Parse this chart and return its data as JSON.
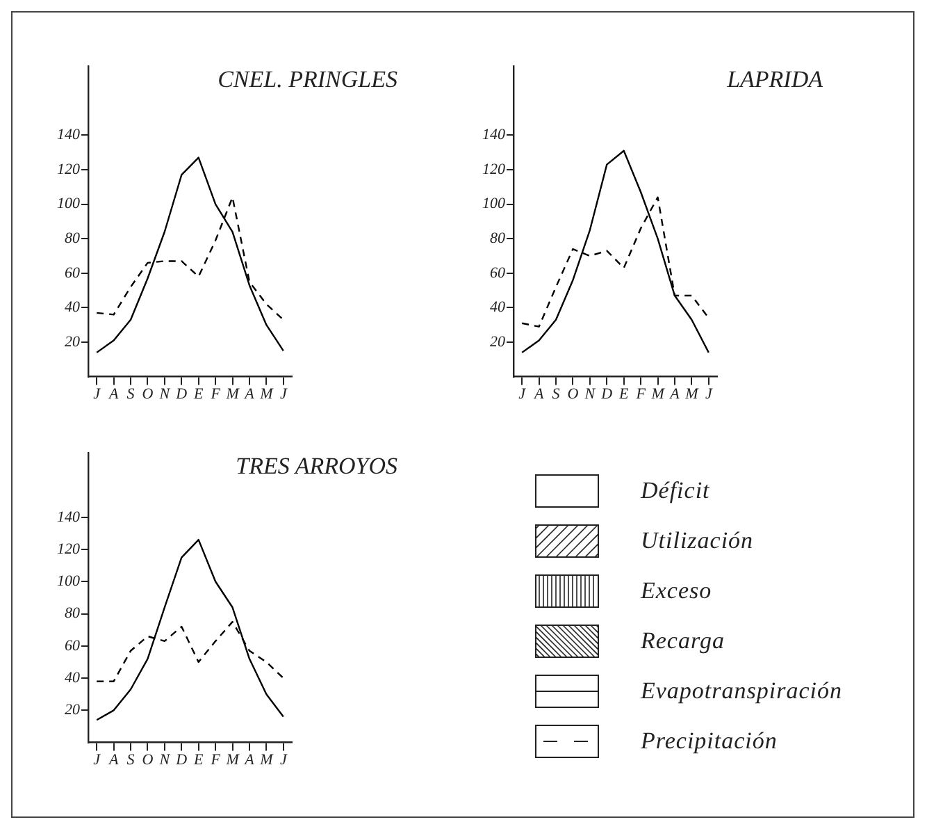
{
  "chart_data": [
    {
      "type": "line",
      "title": "CNEL. PRINGLES",
      "categories": [
        "J",
        "A",
        "S",
        "O",
        "N",
        "D",
        "E",
        "F",
        "M",
        "A",
        "M",
        "J"
      ],
      "series": [
        {
          "color": "#000000",
          "line_style": "solid",
          "values": [
            14,
            21,
            33,
            57,
            84,
            117,
            127,
            100,
            84,
            53,
            30,
            15
          ]
        },
        {
          "color": "#000000",
          "line_style": "dashed",
          "values": [
            37,
            36,
            52,
            66,
            67,
            67,
            58,
            79,
            104,
            55,
            42,
            33
          ]
        }
      ],
      "ylim": [
        0,
        180
      ],
      "yticks": [
        20,
        40,
        60,
        80,
        100,
        120,
        140
      ],
      "grid": false,
      "legend": false,
      "marker": "none"
    },
    {
      "type": "line",
      "title": "LAPRIDA",
      "categories": [
        "J",
        "A",
        "S",
        "O",
        "N",
        "D",
        "E",
        "F",
        "M",
        "A",
        "M",
        "J"
      ],
      "series": [
        {
          "color": "#000000",
          "line_style": "solid",
          "values": [
            14,
            21,
            33,
            56,
            85,
            123,
            131,
            107,
            80,
            47,
            33,
            14
          ]
        },
        {
          "color": "#000000",
          "line_style": "dashed",
          "values": [
            31,
            29,
            52,
            74,
            70,
            73,
            63,
            86,
            104,
            47,
            47,
            34
          ]
        }
      ],
      "ylim": [
        0,
        180
      ],
      "yticks": [
        20,
        40,
        60,
        80,
        100,
        120,
        140
      ],
      "grid": false,
      "legend": false,
      "marker": "none"
    },
    {
      "type": "line",
      "title": "TRES ARROYOS",
      "categories": [
        "J",
        "A",
        "S",
        "O",
        "N",
        "D",
        "E",
        "F",
        "M",
        "A",
        "M",
        "J"
      ],
      "series": [
        {
          "color": "#000000",
          "line_style": "solid",
          "values": [
            14,
            20,
            33,
            52,
            84,
            115,
            126,
            100,
            84,
            52,
            30,
            16
          ]
        },
        {
          "color": "#000000",
          "line_style": "dashed",
          "values": [
            38,
            38,
            57,
            66,
            63,
            72,
            50,
            63,
            75,
            57,
            50,
            40
          ]
        }
      ],
      "ylim": [
        0,
        180
      ],
      "yticks": [
        20,
        40,
        60,
        80,
        100,
        120,
        140
      ],
      "grid": false,
      "legend": false,
      "marker": "none"
    },
    {
      "type": "other",
      "annotations": [
        "Déficit",
        "Utilización",
        "Exceso",
        "Recarga",
        "Evapotranspiración",
        "Precipitación"
      ]
    }
  ]
}
